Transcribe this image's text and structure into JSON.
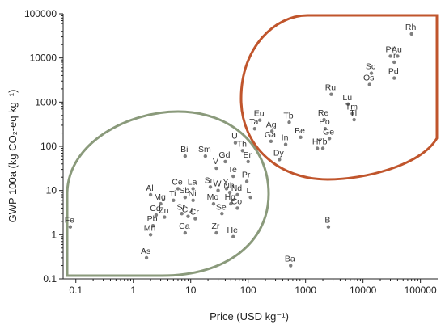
{
  "chart_data": {
    "type": "scatter",
    "xlabel": "Price (USD kg⁻¹)",
    "ylabel": "GWP 100a (kg CO₂-eq kg⁻¹)",
    "x_scale": "log",
    "y_scale": "log",
    "xlim": [
      0.06,
      200000
    ],
    "ylim": [
      0.1,
      100000
    ],
    "x_ticks": [
      "0.1",
      "1",
      "10",
      "100",
      "1000",
      "10000",
      "100000"
    ],
    "y_ticks": [
      "0.1",
      "1",
      "10",
      "100",
      "1000",
      "10000",
      "100000"
    ],
    "grid": false,
    "region_colors": {
      "low": "#8a9a7b",
      "high": "#c0552c"
    },
    "point_color": "#7f7f7f",
    "points": [
      {
        "label": "Rh",
        "x": 70000,
        "y": 35000
      },
      {
        "label": "Pt",
        "x": 30000,
        "y": 11000
      },
      {
        "label": "Au",
        "x": 40000,
        "y": 11000
      },
      {
        "label": "Sc",
        "x": 14000,
        "y": 4500
      },
      {
        "label": "Ir",
        "x": 35000,
        "y": 8000
      },
      {
        "label": "Os",
        "x": 13000,
        "y": 2500
      },
      {
        "label": "Pd",
        "x": 35000,
        "y": 3500
      },
      {
        "label": "Ru",
        "x": 2800,
        "y": 1500
      },
      {
        "label": "Lu",
        "x": 5500,
        "y": 900
      },
      {
        "label": "Tm",
        "x": 6500,
        "y": 550
      },
      {
        "label": "Re",
        "x": 2100,
        "y": 400
      },
      {
        "label": "Tl",
        "x": 7000,
        "y": 400
      },
      {
        "label": "Eu",
        "x": 160,
        "y": 390
      },
      {
        "label": "Tb",
        "x": 520,
        "y": 350
      },
      {
        "label": "Ta",
        "x": 130,
        "y": 250
      },
      {
        "label": "Ag",
        "x": 260,
        "y": 220
      },
      {
        "label": "Ho",
        "x": 2200,
        "y": 250
      },
      {
        "label": "Be",
        "x": 820,
        "y": 160
      },
      {
        "label": "Ga",
        "x": 250,
        "y": 130
      },
      {
        "label": "In",
        "x": 450,
        "y": 110
      },
      {
        "label": "Ge",
        "x": 2600,
        "y": 150
      },
      {
        "label": "Th",
        "x": 80,
        "y": 80
      },
      {
        "label": "Hf",
        "x": 1600,
        "y": 90
      },
      {
        "label": "Yb",
        "x": 2000,
        "y": 90
      },
      {
        "label": "Dy",
        "x": 350,
        "y": 50
      },
      {
        "label": "Bi",
        "x": 8,
        "y": 60
      },
      {
        "label": "Sm",
        "x": 18,
        "y": 60
      },
      {
        "label": "U",
        "x": 60,
        "y": 120
      },
      {
        "label": "Gd",
        "x": 40,
        "y": 45
      },
      {
        "label": "Er",
        "x": 100,
        "y": 45
      },
      {
        "label": "V",
        "x": 28,
        "y": 32
      },
      {
        "label": "Te",
        "x": 55,
        "y": 21
      },
      {
        "label": "Pr",
        "x": 95,
        "y": 16
      },
      {
        "label": "Ce",
        "x": 6,
        "y": 11
      },
      {
        "label": "La",
        "x": 11,
        "y": 11
      },
      {
        "label": "Sn",
        "x": 22,
        "y": 12
      },
      {
        "label": "W",
        "x": 30,
        "y": 10
      },
      {
        "label": "Y",
        "x": 42,
        "y": 11
      },
      {
        "label": "Nb",
        "x": 48,
        "y": 9
      },
      {
        "label": "Nd",
        "x": 65,
        "y": 8
      },
      {
        "label": "Al",
        "x": 2,
        "y": 8
      },
      {
        "label": "Ti",
        "x": 5,
        "y": 6
      },
      {
        "label": "Sb",
        "x": 8,
        "y": 7
      },
      {
        "label": "Ni",
        "x": 11,
        "y": 6
      },
      {
        "label": "Mo",
        "x": 25,
        "y": 5
      },
      {
        "label": "Hg",
        "x": 50,
        "y": 5
      },
      {
        "label": "Li",
        "x": 110,
        "y": 7
      },
      {
        "label": "Co",
        "x": 65,
        "y": 4
      },
      {
        "label": "Mg",
        "x": 3,
        "y": 5
      },
      {
        "label": "Sr",
        "x": 7,
        "y": 3
      },
      {
        "label": "Se",
        "x": 35,
        "y": 3
      },
      {
        "label": "Cd",
        "x": 2.5,
        "y": 2.8
      },
      {
        "label": "Cu",
        "x": 9,
        "y": 2.6
      },
      {
        "label": "Zn",
        "x": 3.5,
        "y": 2.5
      },
      {
        "label": "Cr",
        "x": 12,
        "y": 2.3
      },
      {
        "label": "Pb",
        "x": 2.2,
        "y": 1.6
      },
      {
        "label": "Ca",
        "x": 8,
        "y": 1.1
      },
      {
        "label": "Zr",
        "x": 28,
        "y": 1.1
      },
      {
        "label": "He",
        "x": 55,
        "y": 0.9
      },
      {
        "label": "Mn",
        "x": 2,
        "y": 1.0
      },
      {
        "label": "Fe",
        "x": 0.08,
        "y": 1.5
      },
      {
        "label": "As",
        "x": 1.7,
        "y": 0.3
      },
      {
        "label": "B",
        "x": 2500,
        "y": 1.5
      },
      {
        "label": "Ba",
        "x": 550,
        "y": 0.2
      }
    ]
  }
}
